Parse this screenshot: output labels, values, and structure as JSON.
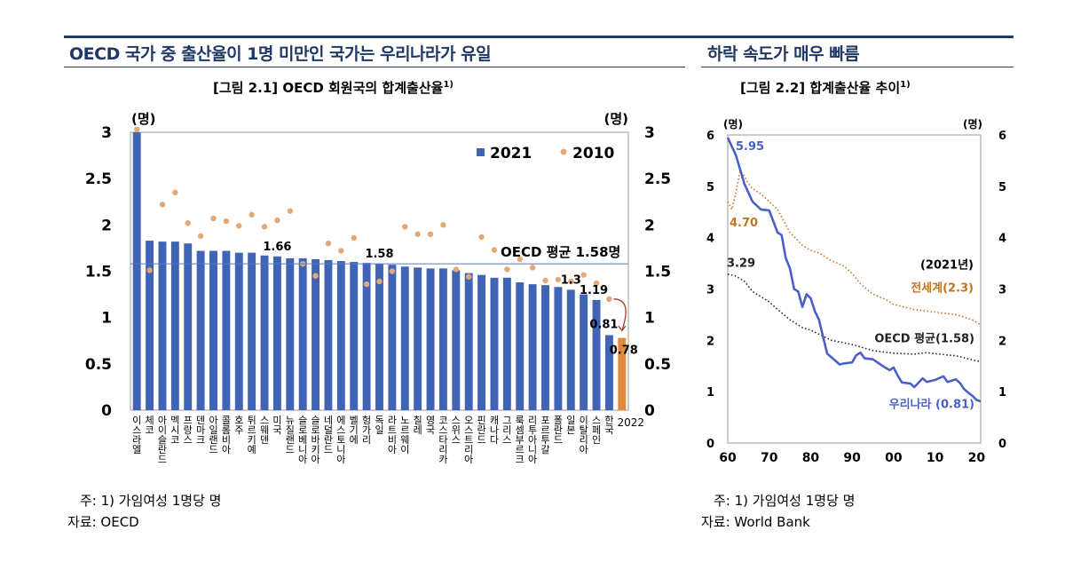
{
  "left": {
    "section_title": "OECD 국가 중 출산율이 1명 미만인 국가는 우리나라가 유일",
    "figure_title": "[그림 2.1] OECD 회원국의 합계출산율",
    "figure_title_sup": "1)",
    "note": "주: 1) 가임여성 1명당 명",
    "source": "자료: OECD"
  },
  "right": {
    "section_title": "하락 속도가 매우 빠름",
    "figure_title": "[그림 2.2] 합계출산율 추이",
    "figure_title_sup": "1)",
    "note": "주: 1) 가임여성 1명당 명",
    "source": "자료: World Bank"
  },
  "colors": {
    "navy": "#1f3864",
    "bar_2021": "#3f63b5",
    "bar_korea_2022": "#e08a3c",
    "dot_2010": "#e3a878",
    "world": "#c4731d",
    "oecd": "#222222",
    "korea": "#4a5fc8"
  },
  "chart_data": [
    {
      "type": "bar",
      "title": "[그림 2.1] OECD 회원국의 합계출산율",
      "unit_left": "(명)",
      "unit_right": "(명)",
      "ylim": [
        0,
        3
      ],
      "y_ticks": [
        "0",
        "0.5",
        "1",
        "1.5",
        "2",
        "2.5",
        "3"
      ],
      "legend": [
        "2021",
        "2010"
      ],
      "categories": [
        "이스라엘",
        "체코",
        "아이슬란드",
        "멕시코",
        "프랑스",
        "덴마크",
        "아일랜드",
        "콜롬비아",
        "호주",
        "튀르키예",
        "스웨덴",
        "미국",
        "뉴질랜드",
        "슬로베니아",
        "슬로바키아",
        "네덜란드",
        "에스토니아",
        "벨기에",
        "헝가리",
        "독일",
        "라트비아",
        "노르웨이",
        "칠레",
        "영국",
        "코스타리카",
        "스위스",
        "오스트리아",
        "핀란드",
        "캐나다",
        "그리스",
        "룩셈부르크",
        "리투아니아",
        "포르투갈",
        "폴란드",
        "일본",
        "이탈리아",
        "스페인",
        "한국",
        "2022"
      ],
      "series": [
        {
          "name": "2021",
          "values": [
            3.0,
            1.83,
            1.82,
            1.82,
            1.8,
            1.72,
            1.72,
            1.72,
            1.7,
            1.7,
            1.67,
            1.66,
            1.64,
            1.64,
            1.63,
            1.62,
            1.61,
            1.6,
            1.59,
            1.58,
            1.57,
            1.55,
            1.54,
            1.53,
            1.53,
            1.51,
            1.48,
            1.46,
            1.43,
            1.43,
            1.38,
            1.36,
            1.35,
            1.33,
            1.3,
            1.25,
            1.19,
            0.81,
            0.78
          ]
        },
        {
          "name": "2010",
          "values": [
            3.03,
            1.51,
            2.22,
            2.35,
            2.02,
            1.88,
            2.07,
            2.04,
            1.99,
            2.11,
            1.98,
            2.05,
            2.15,
            1.58,
            1.45,
            1.8,
            1.72,
            1.86,
            1.36,
            1.39,
            1.5,
            1.98,
            1.9,
            1.9,
            2.0,
            1.52,
            1.44,
            1.87,
            1.73,
            1.52,
            1.63,
            1.54,
            1.4,
            1.41,
            1.39,
            1.46,
            1.37,
            1.2,
            null
          ]
        }
      ],
      "highlight_index": 38,
      "data_labels": [
        {
          "index": 11,
          "text": "1.66"
        },
        {
          "index": 19,
          "text": "1.58"
        },
        {
          "index": 34,
          "text": "1.3"
        },
        {
          "index": 36,
          "text": "1.19"
        },
        {
          "index": 37,
          "text": "0.81"
        },
        {
          "index": 38,
          "text": "0.78"
        }
      ],
      "reference_line": {
        "label": "OECD 평균 1.58명",
        "value": 1.58
      }
    },
    {
      "type": "line",
      "title": "[그림 2.2] 합계출산율 추이",
      "unit_left": "(명)",
      "unit_right": "(명)",
      "xlim": [
        1960,
        2021
      ],
      "ylim": [
        0,
        6
      ],
      "x_ticks": [
        {
          "value": 1960,
          "label": "60"
        },
        {
          "value": 1970,
          "label": "70"
        },
        {
          "value": 1980,
          "label": "80"
        },
        {
          "value": 1990,
          "label": "90"
        },
        {
          "value": 2000,
          "label": "00"
        },
        {
          "value": 2010,
          "label": "10"
        },
        {
          "value": 2020,
          "label": "20"
        }
      ],
      "y_ticks": [
        "0",
        "1",
        "2",
        "3",
        "4",
        "5",
        "6"
      ],
      "year_note": "(2021년)",
      "series": [
        {
          "name": "전세계",
          "end_label": "전세계(2.3)",
          "start_label": "4.70",
          "color": "#c4731d",
          "style": "dotted",
          "x": [
            1960,
            1961,
            1962,
            1963,
            1964,
            1965,
            1966,
            1968,
            1970,
            1972,
            1975,
            1978,
            1980,
            1982,
            1985,
            1988,
            1990,
            1992,
            1995,
            1998,
            2000,
            2005,
            2010,
            2015,
            2019,
            2021
          ],
          "y": [
            4.7,
            4.55,
            4.9,
            5.3,
            5.2,
            5.05,
            4.95,
            4.85,
            4.7,
            4.55,
            4.1,
            3.85,
            3.75,
            3.7,
            3.55,
            3.45,
            3.3,
            3.1,
            2.9,
            2.8,
            2.7,
            2.6,
            2.55,
            2.5,
            2.4,
            2.3
          ]
        },
        {
          "name": "OECD 평균",
          "end_label": "OECD 평균(1.58)",
          "start_label": "3.29",
          "color": "#222222",
          "style": "dotted",
          "x": [
            1960,
            1962,
            1964,
            1966,
            1968,
            1970,
            1972,
            1975,
            1978,
            1980,
            1985,
            1990,
            1995,
            2000,
            2005,
            2008,
            2010,
            2015,
            2019,
            2021
          ],
          "y": [
            3.29,
            3.25,
            3.15,
            2.95,
            2.85,
            2.75,
            2.6,
            2.4,
            2.25,
            2.2,
            2.0,
            1.92,
            1.8,
            1.75,
            1.73,
            1.76,
            1.74,
            1.7,
            1.62,
            1.58
          ]
        },
        {
          "name": "우리나라",
          "end_label": "우리나라 (0.81)",
          "start_label": "5.95",
          "color": "#4a5fc8",
          "style": "solid",
          "x": [
            1960,
            1962,
            1964,
            1966,
            1968,
            1970,
            1972,
            1973,
            1974,
            1975,
            1976,
            1977,
            1978,
            1979,
            1980,
            1981,
            1982,
            1983,
            1984,
            1985,
            1986,
            1987,
            1988,
            1990,
            1991,
            1992,
            1993,
            1995,
            1997,
            1999,
            2000,
            2001,
            2002,
            2004,
            2005,
            2007,
            2008,
            2010,
            2012,
            2013,
            2015,
            2016,
            2017,
            2018,
            2019,
            2020,
            2021
          ],
          "y": [
            5.95,
            5.6,
            5.05,
            4.7,
            4.55,
            4.53,
            4.1,
            4.05,
            3.6,
            3.4,
            3.0,
            2.95,
            2.65,
            2.9,
            2.82,
            2.57,
            2.4,
            2.06,
            1.74,
            1.67,
            1.6,
            1.53,
            1.55,
            1.57,
            1.71,
            1.76,
            1.65,
            1.63,
            1.52,
            1.42,
            1.47,
            1.31,
            1.18,
            1.16,
            1.09,
            1.26,
            1.19,
            1.23,
            1.3,
            1.19,
            1.24,
            1.17,
            1.05,
            0.98,
            0.92,
            0.84,
            0.81
          ]
        }
      ]
    }
  ]
}
